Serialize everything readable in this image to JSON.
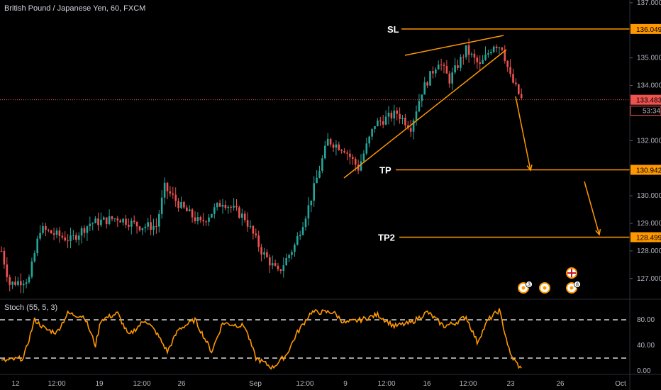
{
  "header": {
    "symbol_title": "British Pound / Japanese Yen, 60, FXCM"
  },
  "stoch_panel": {
    "title": "Stoch (55, 5, 3)",
    "ticks": [
      "80.00",
      "40.00",
      "0.00"
    ]
  },
  "colors": {
    "background": "#000000",
    "up_candle": "#26a69a",
    "down_candle": "#ef5350",
    "annotation": "#ff9800",
    "current_price": "#ef5350",
    "stoch_line": "#ff9800",
    "stoch_levels": "#ffffff"
  },
  "chart_data": {
    "type": "candlestick",
    "title": "British Pound / Japanese Yen, 60, FXCM",
    "y_axis_ticks": [
      "137.000",
      "135.000",
      "134.000",
      "132.000",
      "130.000",
      "129.000",
      "128.000",
      "127.000"
    ],
    "x_axis_ticks": [
      "12",
      "12:00",
      "19",
      "12:00",
      "26",
      "Sep",
      "12:00",
      "9",
      "12:00",
      "16",
      "12:00",
      "23",
      "26",
      "Oct"
    ],
    "ylim": [
      126.3,
      137.1
    ],
    "price_path_anchors": [
      {
        "t": 0,
        "price": 128.0
      },
      {
        "t": 3,
        "price": 126.8
      },
      {
        "t": 10,
        "price": 127.0
      },
      {
        "t": 14,
        "price": 128.8
      },
      {
        "t": 25,
        "price": 128.4
      },
      {
        "t": 32,
        "price": 129.0
      },
      {
        "t": 42,
        "price": 129.2
      },
      {
        "t": 50,
        "price": 128.9
      },
      {
        "t": 56,
        "price": 128.9
      },
      {
        "t": 59,
        "price": 130.3
      },
      {
        "t": 65,
        "price": 129.6
      },
      {
        "t": 72,
        "price": 129.0
      },
      {
        "t": 80,
        "price": 129.8
      },
      {
        "t": 88,
        "price": 129.2
      },
      {
        "t": 94,
        "price": 128.0
      },
      {
        "t": 100,
        "price": 127.2
      },
      {
        "t": 106,
        "price": 128.2
      },
      {
        "t": 111,
        "price": 129.6
      },
      {
        "t": 118,
        "price": 132.0
      },
      {
        "t": 124,
        "price": 131.7
      },
      {
        "t": 129,
        "price": 131.0
      },
      {
        "t": 135,
        "price": 132.6
      },
      {
        "t": 143,
        "price": 133.0
      },
      {
        "t": 148,
        "price": 132.5
      },
      {
        "t": 152,
        "price": 133.8
      },
      {
        "t": 158,
        "price": 134.9
      },
      {
        "t": 162,
        "price": 134.2
      },
      {
        "t": 168,
        "price": 135.3
      },
      {
        "t": 173,
        "price": 134.7
      },
      {
        "t": 178,
        "price": 135.5
      },
      {
        "t": 181,
        "price": 135.4
      },
      {
        "t": 184,
        "price": 134.3
      },
      {
        "t": 188,
        "price": 133.5
      }
    ],
    "current_price": "133.483",
    "countdown": "53:34",
    "horizontal_levels": [
      {
        "label": "SL",
        "price": 136.049,
        "price_text": "136.049"
      },
      {
        "label": "TP",
        "price": 130.942,
        "price_text": "130.942"
      },
      {
        "label": "TP2",
        "price": 128.499,
        "price_text": "128.499"
      }
    ],
    "stochastic": {
      "name": "Stoch (55, 5, 3)",
      "levels": [
        80,
        20
      ],
      "ylim": [
        0,
        100
      ],
      "anchors": [
        {
          "t": 0,
          "v": 15
        },
        {
          "t": 8,
          "v": 20
        },
        {
          "t": 12,
          "v": 80
        },
        {
          "t": 16,
          "v": 65
        },
        {
          "t": 20,
          "v": 60
        },
        {
          "t": 24,
          "v": 90
        },
        {
          "t": 30,
          "v": 85
        },
        {
          "t": 34,
          "v": 40
        },
        {
          "t": 36,
          "v": 80
        },
        {
          "t": 42,
          "v": 90
        },
        {
          "t": 46,
          "v": 55
        },
        {
          "t": 52,
          "v": 80
        },
        {
          "t": 56,
          "v": 60
        },
        {
          "t": 60,
          "v": 30
        },
        {
          "t": 64,
          "v": 65
        },
        {
          "t": 70,
          "v": 80
        },
        {
          "t": 76,
          "v": 30
        },
        {
          "t": 80,
          "v": 75
        },
        {
          "t": 88,
          "v": 70
        },
        {
          "t": 92,
          "v": 20
        },
        {
          "t": 98,
          "v": 5
        },
        {
          "t": 103,
          "v": 25
        },
        {
          "t": 107,
          "v": 60
        },
        {
          "t": 112,
          "v": 92
        },
        {
          "t": 120,
          "v": 92
        },
        {
          "t": 124,
          "v": 75
        },
        {
          "t": 130,
          "v": 80
        },
        {
          "t": 136,
          "v": 88
        },
        {
          "t": 142,
          "v": 70
        },
        {
          "t": 148,
          "v": 75
        },
        {
          "t": 154,
          "v": 92
        },
        {
          "t": 160,
          "v": 70
        },
        {
          "t": 164,
          "v": 75
        },
        {
          "t": 168,
          "v": 85
        },
        {
          "t": 172,
          "v": 45
        },
        {
          "t": 176,
          "v": 80
        },
        {
          "t": 180,
          "v": 95
        },
        {
          "t": 184,
          "v": 25
        },
        {
          "t": 188,
          "v": 2
        }
      ]
    }
  },
  "annotations": {
    "sl_label": "SL",
    "tp_label": "TP",
    "tp2_label": "TP2"
  },
  "event_icons": [
    {
      "kind": "calendar-flag",
      "badge": "3"
    },
    {
      "kind": "uk-flag",
      "badge": ""
    },
    {
      "kind": "calendar-flag",
      "badge": "8"
    }
  ]
}
